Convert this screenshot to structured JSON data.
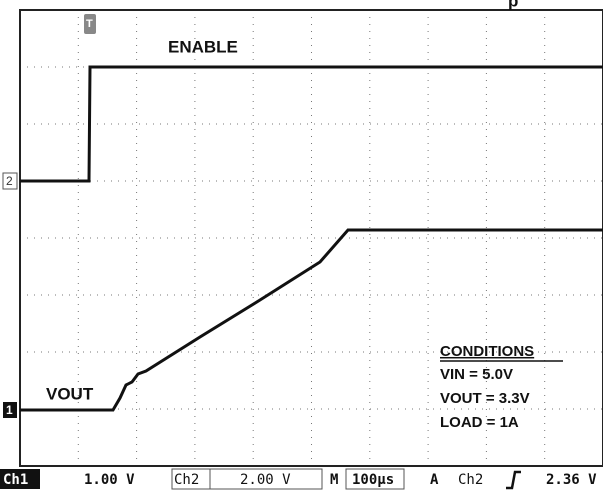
{
  "title_fragment": "p",
  "traces": {
    "ch2_label": "ENABLE",
    "ch1_label": "VOUT"
  },
  "markers": {
    "ch2": "2",
    "ch1": "1",
    "trigger": "T"
  },
  "conditions": {
    "heading": "CONDITIONS",
    "lines": [
      "VIN = 5.0V",
      "VOUT = 3.3V",
      "LOAD = 1A"
    ]
  },
  "status_bar": {
    "ch1": "Ch1",
    "ch1_scale": "1.00 V",
    "ch2": "Ch2",
    "ch2_scale": "2.00 V",
    "timebase_label": "M",
    "timebase": "100µs",
    "trigger_mode": "A",
    "trigger_source": "Ch2",
    "trigger_level": "2.36 V"
  }
}
